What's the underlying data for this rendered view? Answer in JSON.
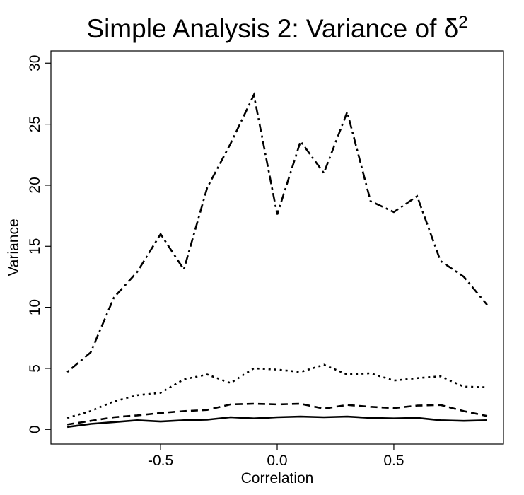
{
  "chart_data": {
    "type": "line",
    "title": "Simple Analysis 2: Variance of δ",
    "title_superscript": "2",
    "xlabel": "Correlation",
    "ylabel": "Variance",
    "xlim": [
      -0.97,
      0.97
    ],
    "ylim": [
      -1.2,
      31.0
    ],
    "x_ticks": [
      -0.5,
      0.0,
      0.5
    ],
    "x_tick_labels": [
      "-0.5",
      "0.0",
      "0.5"
    ],
    "y_ticks": [
      0,
      5,
      10,
      15,
      20,
      25,
      30
    ],
    "y_tick_labels": [
      "0",
      "5",
      "10",
      "15",
      "20",
      "25",
      "30"
    ],
    "grid": false,
    "legend": "none",
    "x": [
      -0.9,
      -0.8,
      -0.7,
      -0.6,
      -0.5,
      -0.4,
      -0.3,
      -0.2,
      -0.1,
      0.0,
      0.1,
      0.2,
      0.3,
      0.4,
      0.5,
      0.6,
      0.7,
      0.8,
      0.9
    ],
    "series": [
      {
        "style": "solid",
        "values": [
          0.2,
          0.45,
          0.6,
          0.75,
          0.65,
          0.75,
          0.8,
          1.0,
          0.9,
          1.0,
          1.05,
          1.0,
          1.05,
          0.95,
          0.9,
          0.95,
          0.75,
          0.7,
          0.75
        ]
      },
      {
        "style": "dashed",
        "values": [
          0.4,
          0.7,
          1.0,
          1.15,
          1.35,
          1.5,
          1.6,
          2.05,
          2.1,
          2.05,
          2.1,
          1.7,
          2.0,
          1.85,
          1.75,
          1.95,
          2.0,
          1.5,
          1.1
        ]
      },
      {
        "style": "dotted",
        "values": [
          0.95,
          1.5,
          2.3,
          2.8,
          3.0,
          4.1,
          4.5,
          3.8,
          5.0,
          4.9,
          4.7,
          5.3,
          4.5,
          4.6,
          4.0,
          4.2,
          4.35,
          3.5,
          3.45
        ]
      },
      {
        "style": "dot-dash",
        "values": [
          4.7,
          6.3,
          10.8,
          12.9,
          16.0,
          13.1,
          19.8,
          23.4,
          27.4,
          17.6,
          23.6,
          21.0,
          26.0,
          18.7,
          17.8,
          19.1,
          13.8,
          12.5,
          10.2
        ]
      }
    ]
  }
}
